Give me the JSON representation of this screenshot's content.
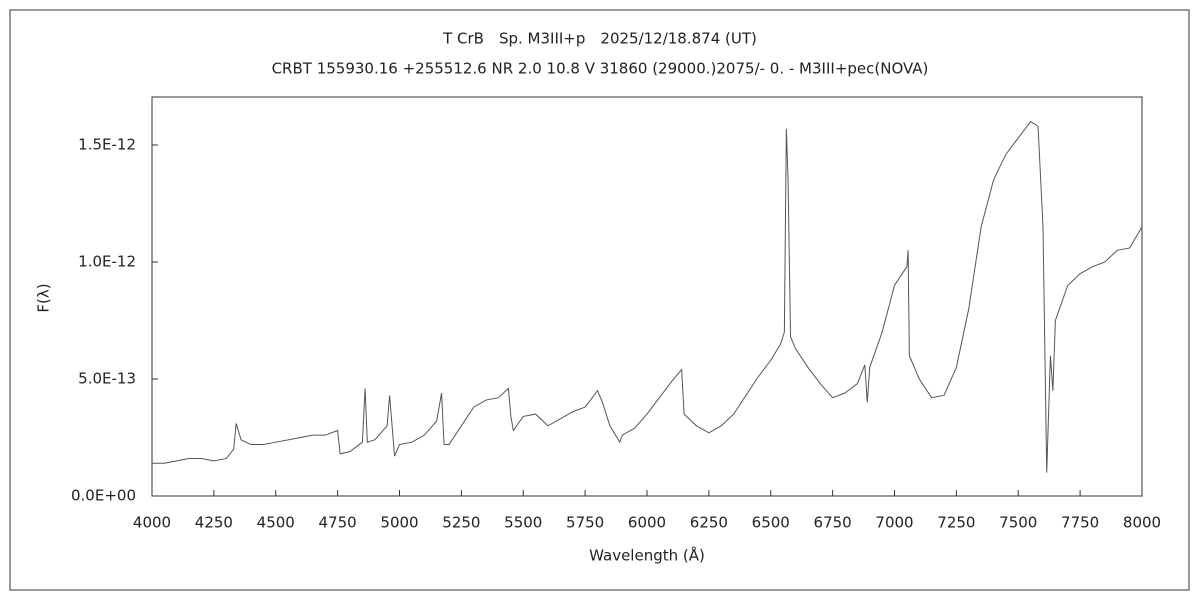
{
  "chart_data": {
    "type": "line",
    "title": "T CrB　Sp. M3III+p　2025/12/18.874 (UT)",
    "subtitle": "CRBT 155930.16 +255512.6 NR 2.0 10.8 V 31860 (29000.)2075/-  0. - M3III+pec(NOVA)",
    "x_label": "Wavelength (Å)",
    "y_label": "F(λ)",
    "xlim": [
      4000,
      8000
    ],
    "ylim": [
      0,
      1.705e-12
    ],
    "xticks": [
      4000,
      4250,
      4500,
      4750,
      5000,
      5250,
      5500,
      5750,
      6000,
      6250,
      6500,
      6750,
      7000,
      7250,
      7500,
      7750,
      8000
    ],
    "yticks": [
      {
        "value": 0,
        "label": "0.0E+00"
      },
      {
        "value": 5e-13,
        "label": "5.0E-13"
      },
      {
        "value": 1e-12,
        "label": "1.0E-12"
      },
      {
        "value": 1.5e-12,
        "label": "1.5E-12"
      }
    ],
    "color": "#555555",
    "x": [
      4000,
      4050,
      4100,
      4150,
      4200,
      4250,
      4300,
      4330,
      4340,
      4360,
      4400,
      4450,
      4500,
      4550,
      4600,
      4650,
      4700,
      4750,
      4760,
      4800,
      4850,
      4861,
      4870,
      4900,
      4950,
      4960,
      4980,
      5000,
      5050,
      5100,
      5150,
      5170,
      5180,
      5200,
      5250,
      5300,
      5350,
      5400,
      5440,
      5450,
      5460,
      5500,
      5550,
      5600,
      5650,
      5700,
      5750,
      5800,
      5820,
      5850,
      5890,
      5900,
      5950,
      6000,
      6050,
      6100,
      6140,
      6150,
      6200,
      6250,
      6300,
      6350,
      6400,
      6450,
      6500,
      6540,
      6555,
      6563,
      6570,
      6580,
      6600,
      6650,
      6700,
      6750,
      6800,
      6850,
      6880,
      6890,
      6900,
      6950,
      7000,
      7050,
      7055,
      7060,
      7100,
      7150,
      7200,
      7250,
      7300,
      7350,
      7400,
      7450,
      7500,
      7550,
      7580,
      7600,
      7615,
      7630,
      7640,
      7650,
      7700,
      7750,
      7800,
      7850,
      7900,
      7950,
      8000
    ],
    "values": [
      1.4e-13,
      1.4e-13,
      1.5e-13,
      1.6e-13,
      1.6e-13,
      1.5e-13,
      1.6e-13,
      2e-13,
      3.1e-13,
      2.4e-13,
      2.2e-13,
      2.2e-13,
      2.3e-13,
      2.4e-13,
      2.5e-13,
      2.6e-13,
      2.6e-13,
      2.8e-13,
      1.8e-13,
      1.9e-13,
      2.3e-13,
      4.6e-13,
      2.3e-13,
      2.4e-13,
      3e-13,
      4.3e-13,
      1.7e-13,
      2.2e-13,
      2.3e-13,
      2.6e-13,
      3.2e-13,
      4.4e-13,
      2.2e-13,
      2.2e-13,
      3e-13,
      3.8e-13,
      4.1e-13,
      4.2e-13,
      4.6e-13,
      3.4e-13,
      2.8e-13,
      3.4e-13,
      3.5e-13,
      3e-13,
      3.3e-13,
      3.6e-13,
      3.8e-13,
      4.5e-13,
      4e-13,
      3e-13,
      2.3e-13,
      2.6e-13,
      2.9e-13,
      3.5e-13,
      4.2e-13,
      4.9e-13,
      5.4e-13,
      3.5e-13,
      3e-13,
      2.7e-13,
      3e-13,
      3.5e-13,
      4.3e-13,
      5.1e-13,
      5.8e-13,
      6.5e-13,
      7e-13,
      1.57e-12,
      1.35e-12,
      6.8e-13,
      6.3e-13,
      5.5e-13,
      4.8e-13,
      4.2e-13,
      4.4e-13,
      4.8e-13,
      5.6e-13,
      4e-13,
      5.5e-13,
      7e-13,
      9e-13,
      9.8e-13,
      1.05e-12,
      6e-13,
      5e-13,
      4.2e-13,
      4.3e-13,
      5.5e-13,
      8e-13,
      1.15e-12,
      1.35e-12,
      1.46e-12,
      1.53e-12,
      1.6e-12,
      1.58e-12,
      1.15e-12,
      1e-13,
      6e-13,
      4.5e-13,
      7.5e-13,
      9e-13,
      9.5e-13,
      9.8e-13,
      1e-12,
      1.05e-12,
      1.06e-12,
      1.15e-12
    ]
  }
}
